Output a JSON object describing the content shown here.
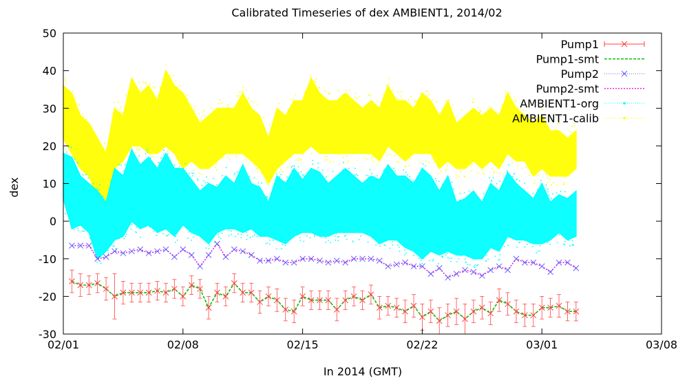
{
  "chart_data": {
    "type": "line",
    "title": "Calibrated Timeseries of dex AMBIENT1, 2014/02",
    "xlabel": "In 2014 (GMT)",
    "ylabel": "dex",
    "ylim": [
      -30,
      50
    ],
    "xlim": [
      "2014-02-01",
      "2014-03-08"
    ],
    "x_ticks": [
      "02/01",
      "02/08",
      "02/15",
      "02/22",
      "03/01",
      "03/08"
    ],
    "y_ticks": [
      "-30",
      "-20",
      "-10",
      "0",
      "10",
      "20",
      "30",
      "40",
      "50"
    ],
    "grid": false,
    "legend_position": "top-right",
    "series": [
      {
        "name": "Pump1",
        "color": "#ff4040",
        "style": "points-with-error-bars",
        "x": [
          "02-01 12:00",
          "02-02 00:00",
          "02-02 12:00",
          "02-03 00:00",
          "02-03 12:00",
          "02-04 00:00",
          "02-04 12:00",
          "02-05 00:00",
          "02-05 12:00",
          "02-06 00:00",
          "02-06 12:00",
          "02-07 00:00",
          "02-07 12:00",
          "02-08 00:00",
          "02-08 12:00",
          "02-09 00:00",
          "02-09 12:00",
          "02-10 00:00",
          "02-10 12:00",
          "02-11 00:00",
          "02-11 12:00",
          "02-12 00:00",
          "02-12 12:00",
          "02-13 00:00",
          "02-13 12:00",
          "02-14 00:00",
          "02-14 12:00",
          "02-15 00:00",
          "02-15 12:00",
          "02-16 00:00",
          "02-16 12:00",
          "02-17 00:00",
          "02-17 12:00",
          "02-18 00:00",
          "02-18 12:00",
          "02-19 00:00",
          "02-19 12:00",
          "02-20 00:00",
          "02-20 12:00",
          "02-21 00:00",
          "02-21 12:00",
          "02-22 00:00",
          "02-22 12:00",
          "02-23 00:00",
          "02-23 12:00",
          "02-24 00:00",
          "02-24 12:00",
          "02-25 00:00",
          "02-25 12:00",
          "02-26 00:00",
          "02-26 12:00",
          "02-27 00:00",
          "02-27 12:00",
          "02-28 00:00",
          "02-28 12:00",
          "03-01 00:00",
          "03-01 12:00",
          "03-02 00:00",
          "03-02 12:00",
          "03-03 00:00"
        ],
        "values": [
          -16,
          -17,
          -17,
          -16.5,
          -18,
          -20,
          -19,
          -19,
          -19,
          -19,
          -18.5,
          -19,
          -18,
          -20,
          -17,
          -18,
          -23,
          -19,
          -20,
          -16.5,
          -19,
          -19,
          -21.5,
          -20,
          -21,
          -23.5,
          -24,
          -20,
          -21,
          -21,
          -21,
          -23.5,
          -21,
          -20,
          -21,
          -19.5,
          -23,
          -22.5,
          -23,
          -24,
          -22.5,
          -25.5,
          -24,
          -26.5,
          -25,
          -24,
          -26,
          -24,
          -23,
          -24.5,
          -21,
          -22,
          -24,
          -25,
          -25,
          -23,
          -23,
          -22.5,
          -24,
          -24
        ],
        "error": [
          3,
          3,
          2.5,
          2.5,
          3,
          6,
          3,
          2.5,
          2.5,
          2.5,
          2.5,
          2.5,
          2.5,
          2.5,
          2.5,
          2.5,
          3,
          2.5,
          2.5,
          2.5,
          2.5,
          2.5,
          3,
          2.5,
          3,
          3,
          3,
          2.5,
          2.5,
          2.5,
          2.5,
          3,
          2.5,
          2.5,
          2.5,
          2.5,
          3,
          2.5,
          2.5,
          3,
          3,
          3.5,
          3,
          3.5,
          3,
          3.5,
          4,
          3,
          3,
          3,
          3,
          3,
          3,
          3,
          3,
          3,
          2.5,
          3,
          2.5,
          2.5
        ]
      },
      {
        "name": "Pump1-smt",
        "color": "#00c000",
        "style": "dashed-line",
        "x": [
          "02-01 12:00",
          "02-02 00:00",
          "02-02 12:00",
          "02-03 00:00",
          "02-03 12:00",
          "02-04 00:00",
          "02-04 12:00",
          "02-05 00:00",
          "02-05 12:00",
          "02-06 00:00",
          "02-06 12:00",
          "02-07 00:00",
          "02-07 12:00",
          "02-08 00:00",
          "02-08 12:00",
          "02-09 00:00",
          "02-09 12:00",
          "02-10 00:00",
          "02-10 12:00",
          "02-11 00:00",
          "02-11 12:00",
          "02-12 00:00",
          "02-12 12:00",
          "02-13 00:00",
          "02-13 12:00",
          "02-14 00:00",
          "02-14 12:00",
          "02-15 00:00",
          "02-15 12:00",
          "02-16 00:00",
          "02-16 12:00",
          "02-17 00:00",
          "02-17 12:00",
          "02-18 00:00",
          "02-18 12:00",
          "02-19 00:00",
          "02-19 12:00",
          "02-20 00:00",
          "02-20 12:00",
          "02-21 00:00",
          "02-21 12:00",
          "02-22 00:00",
          "02-22 12:00",
          "02-23 00:00",
          "02-23 12:00",
          "02-24 00:00",
          "02-24 12:00",
          "02-25 00:00",
          "02-25 12:00",
          "02-26 00:00",
          "02-26 12:00",
          "02-27 00:00",
          "02-27 12:00",
          "02-28 00:00",
          "02-28 12:00",
          "03-01 00:00",
          "03-01 12:00",
          "03-02 00:00",
          "03-02 12:00",
          "03-03 00:00"
        ],
        "values": [
          -16,
          -17,
          -17,
          -16.5,
          -18,
          -20,
          -19,
          -19,
          -19,
          -19,
          -18.5,
          -19,
          -18,
          -20,
          -17,
          -18,
          -23,
          -19,
          -20,
          -16.5,
          -19,
          -19,
          -21.5,
          -20,
          -21,
          -23.5,
          -24,
          -20,
          -21,
          -21,
          -21,
          -23.5,
          -21,
          -20,
          -21,
          -19.5,
          -23,
          -22.5,
          -23,
          -24,
          -22.5,
          -25.5,
          -24,
          -26.5,
          -25,
          -24,
          -26,
          -24,
          -23,
          -24.5,
          -21,
          -22,
          -24,
          -25,
          -25,
          -23,
          -23,
          -22.5,
          -24,
          -24
        ]
      },
      {
        "name": "Pump2",
        "color": "#6060ff",
        "style": "points",
        "x": [
          "02-01 12:00",
          "02-02 00:00",
          "02-02 12:00",
          "02-03 00:00",
          "02-03 12:00",
          "02-04 00:00",
          "02-04 12:00",
          "02-05 00:00",
          "02-05 12:00",
          "02-06 00:00",
          "02-06 12:00",
          "02-07 00:00",
          "02-07 12:00",
          "02-08 00:00",
          "02-08 12:00",
          "02-09 00:00",
          "02-09 12:00",
          "02-10 00:00",
          "02-10 12:00",
          "02-11 00:00",
          "02-11 12:00",
          "02-12 00:00",
          "02-12 12:00",
          "02-13 00:00",
          "02-13 12:00",
          "02-14 00:00",
          "02-14 12:00",
          "02-15 00:00",
          "02-15 12:00",
          "02-16 00:00",
          "02-16 12:00",
          "02-17 00:00",
          "02-17 12:00",
          "02-18 00:00",
          "02-18 12:00",
          "02-19 00:00",
          "02-19 12:00",
          "02-20 00:00",
          "02-20 12:00",
          "02-21 00:00",
          "02-21 12:00",
          "02-22 00:00",
          "02-22 12:00",
          "02-23 00:00",
          "02-23 12:00",
          "02-24 00:00",
          "02-24 12:00",
          "02-25 00:00",
          "02-25 12:00",
          "02-26 00:00",
          "02-26 12:00",
          "02-27 00:00",
          "02-27 12:00",
          "02-28 00:00",
          "02-28 12:00",
          "03-01 00:00",
          "03-01 12:00",
          "03-02 00:00",
          "03-02 12:00",
          "03-03 00:00"
        ],
        "values": [
          -6.5,
          -6.5,
          -6.5,
          -10,
          -9.5,
          -8,
          -8.5,
          -8,
          -7.5,
          -8.5,
          -8,
          -7.5,
          -9.5,
          -7.5,
          -9,
          -12,
          -9,
          -6,
          -9.5,
          -7.5,
          -8,
          -9,
          -10.5,
          -10.5,
          -10,
          -11,
          -11,
          -10,
          -10,
          -10.5,
          -11,
          -10.5,
          -11,
          -10,
          -10,
          -10,
          -10.5,
          -12,
          -11.5,
          -11,
          -12,
          -12,
          -14,
          -12.5,
          -15,
          -14,
          -13,
          -13.5,
          -14.5,
          -13,
          -12,
          -13,
          -10,
          -11,
          -11,
          -12,
          -13.5,
          -11,
          -11,
          -12.5
        ]
      },
      {
        "name": "Pump2-smt",
        "color": "#e020e0",
        "style": "dotted-line",
        "x": [
          "02-01 12:00",
          "02-02 00:00",
          "02-02 12:00",
          "02-03 00:00",
          "02-03 12:00",
          "02-04 00:00",
          "02-04 12:00",
          "02-05 00:00",
          "02-05 12:00",
          "02-06 00:00",
          "02-06 12:00",
          "02-07 00:00",
          "02-07 12:00",
          "02-08 00:00",
          "02-08 12:00",
          "02-09 00:00",
          "02-09 12:00",
          "02-10 00:00",
          "02-10 12:00",
          "02-11 00:00",
          "02-11 12:00",
          "02-12 00:00",
          "02-12 12:00",
          "02-13 00:00",
          "02-13 12:00",
          "02-14 00:00",
          "02-14 12:00",
          "02-15 00:00",
          "02-15 12:00",
          "02-16 00:00",
          "02-16 12:00",
          "02-17 00:00",
          "02-17 12:00",
          "02-18 00:00",
          "02-18 12:00",
          "02-19 00:00",
          "02-19 12:00",
          "02-20 00:00",
          "02-20 12:00",
          "02-21 00:00",
          "02-21 12:00",
          "02-22 00:00",
          "02-22 12:00",
          "02-23 00:00",
          "02-23 12:00",
          "02-24 00:00",
          "02-24 12:00",
          "02-25 00:00",
          "02-25 12:00",
          "02-26 00:00",
          "02-26 12:00",
          "02-27 00:00",
          "02-27 12:00",
          "02-28 00:00",
          "02-28 12:00",
          "03-01 00:00",
          "03-01 12:00",
          "03-02 00:00",
          "03-02 12:00",
          "03-03 00:00"
        ],
        "values": [
          -6.5,
          -6.5,
          -6.5,
          -10,
          -9.5,
          -8,
          -8.5,
          -8,
          -7.5,
          -8.5,
          -8,
          -7.5,
          -9.5,
          -7.5,
          -9,
          -12,
          -9,
          -6,
          -9.5,
          -7.5,
          -8,
          -9,
          -10.5,
          -10.5,
          -10,
          -11,
          -11,
          -10,
          -10,
          -10.5,
          -11,
          -10.5,
          -11,
          -10,
          -10,
          -10,
          -10.5,
          -12,
          -11.5,
          -11,
          -12,
          -12,
          -14,
          -12.5,
          -15,
          -14,
          -13,
          -13.5,
          -14.5,
          -13,
          -12,
          -13,
          -10,
          -11,
          -11,
          -12,
          -13.5,
          -11,
          -11,
          -12.5
        ]
      },
      {
        "name": "AMBIENT1-org",
        "color": "#00ffff",
        "style": "dense-band",
        "x": [
          "02-01 00:00",
          "02-01 12:00",
          "02-02 00:00",
          "02-02 12:00",
          "02-03 00:00",
          "02-03 12:00",
          "02-04 00:00",
          "02-04 12:00",
          "02-05 00:00",
          "02-05 12:00",
          "02-06 00:00",
          "02-06 12:00",
          "02-07 00:00",
          "02-07 12:00",
          "02-08 00:00",
          "02-08 12:00",
          "02-09 00:00",
          "02-09 12:00",
          "02-10 00:00",
          "02-10 12:00",
          "02-11 00:00",
          "02-11 12:00",
          "02-12 00:00",
          "02-12 12:00",
          "02-13 00:00",
          "02-13 12:00",
          "02-14 00:00",
          "02-14 12:00",
          "02-15 00:00",
          "02-15 12:00",
          "02-16 00:00",
          "02-16 12:00",
          "02-17 00:00",
          "02-17 12:00",
          "02-18 00:00",
          "02-18 12:00",
          "02-19 00:00",
          "02-19 12:00",
          "02-20 00:00",
          "02-20 12:00",
          "02-21 00:00",
          "02-21 12:00",
          "02-22 00:00",
          "02-22 12:00",
          "02-23 00:00",
          "02-23 12:00",
          "02-24 00:00",
          "02-24 12:00",
          "02-25 00:00",
          "02-25 12:00",
          "02-26 00:00",
          "02-26 12:00",
          "02-27 00:00",
          "02-27 12:00",
          "02-28 00:00",
          "02-28 12:00",
          "03-01 00:00",
          "03-01 12:00",
          "03-02 00:00",
          "03-02 12:00",
          "03-03 00:00"
        ],
        "low": [
          6,
          -2,
          -1,
          -3,
          -10,
          -8,
          -5,
          -4,
          0,
          -2,
          -1,
          -3,
          -2,
          -4,
          -1,
          -3,
          -4,
          -6,
          -3,
          -2,
          -2,
          -3,
          -2,
          -4,
          -4,
          -5,
          -6,
          -4,
          -3,
          -3,
          -4,
          -4,
          -3,
          -3,
          -3,
          -3,
          -4,
          -6,
          -5,
          -5,
          -7,
          -8,
          -10,
          -8,
          -9,
          -8,
          -9,
          -9,
          -10,
          -10,
          -7,
          -8,
          -4,
          -5,
          -5,
          -6,
          -6,
          -5,
          -3,
          -5,
          -4
        ],
        "high": [
          18,
          17,
          12,
          10,
          8,
          5,
          14,
          12,
          19,
          15,
          17,
          14,
          18,
          14,
          14,
          11,
          8,
          10,
          9,
          12,
          10,
          15,
          10,
          9,
          5,
          12,
          10,
          14,
          11,
          14,
          13,
          10,
          12,
          14,
          12,
          10,
          12,
          11,
          15,
          12,
          12,
          10,
          14,
          12,
          8,
          12,
          5,
          6,
          8,
          5,
          10,
          8,
          13,
          10,
          8,
          6,
          10,
          5,
          7,
          6,
          8
        ]
      },
      {
        "name": "AMBIENT1-calib",
        "color": "#ffff00",
        "style": "dense-band",
        "x": [
          "02-01 00:00",
          "02-01 12:00",
          "02-02 00:00",
          "02-02 12:00",
          "02-03 00:00",
          "02-03 12:00",
          "02-04 00:00",
          "02-04 12:00",
          "02-05 00:00",
          "02-05 12:00",
          "02-06 00:00",
          "02-06 12:00",
          "02-07 00:00",
          "02-07 12:00",
          "02-08 00:00",
          "02-08 12:00",
          "02-09 00:00",
          "02-09 12:00",
          "02-10 00:00",
          "02-10 12:00",
          "02-11 00:00",
          "02-11 12:00",
          "02-12 00:00",
          "02-12 12:00",
          "02-13 00:00",
          "02-13 12:00",
          "02-14 00:00",
          "02-14 12:00",
          "02-15 00:00",
          "02-15 12:00",
          "02-16 00:00",
          "02-16 12:00",
          "02-17 00:00",
          "02-17 12:00",
          "02-18 00:00",
          "02-18 12:00",
          "02-19 00:00",
          "02-19 12:00",
          "02-20 00:00",
          "02-20 12:00",
          "02-21 00:00",
          "02-21 12:00",
          "02-22 00:00",
          "02-22 12:00",
          "02-23 00:00",
          "02-23 12:00",
          "02-24 00:00",
          "02-24 12:00",
          "02-25 00:00",
          "02-25 12:00",
          "02-26 00:00",
          "02-26 12:00",
          "02-27 00:00",
          "02-27 12:00",
          "02-28 00:00",
          "02-28 12:00",
          "03-01 00:00",
          "03-01 12:00",
          "03-02 00:00",
          "03-02 12:00",
          "03-03 00:00"
        ],
        "low": [
          22,
          18,
          14,
          12,
          6,
          4,
          14,
          16,
          20,
          20,
          18,
          18,
          20,
          18,
          14,
          16,
          14,
          14,
          16,
          18,
          18,
          18,
          16,
          14,
          10,
          14,
          16,
          18,
          18,
          20,
          18,
          18,
          18,
          18,
          18,
          18,
          18,
          16,
          20,
          18,
          16,
          18,
          18,
          18,
          14,
          16,
          14,
          14,
          16,
          14,
          16,
          14,
          18,
          16,
          16,
          12,
          14,
          12,
          12,
          12,
          14
        ],
        "high": [
          36,
          34,
          28,
          26,
          22,
          18,
          30,
          28,
          38,
          34,
          36,
          32,
          40,
          36,
          34,
          30,
          26,
          28,
          30,
          30,
          30,
          34,
          30,
          28,
          22,
          30,
          28,
          32,
          32,
          38,
          34,
          32,
          32,
          34,
          32,
          30,
          32,
          30,
          36,
          32,
          32,
          30,
          34,
          32,
          28,
          32,
          26,
          28,
          30,
          28,
          30,
          28,
          34,
          30,
          28,
          26,
          28,
          24,
          24,
          22,
          24
        ]
      }
    ]
  }
}
